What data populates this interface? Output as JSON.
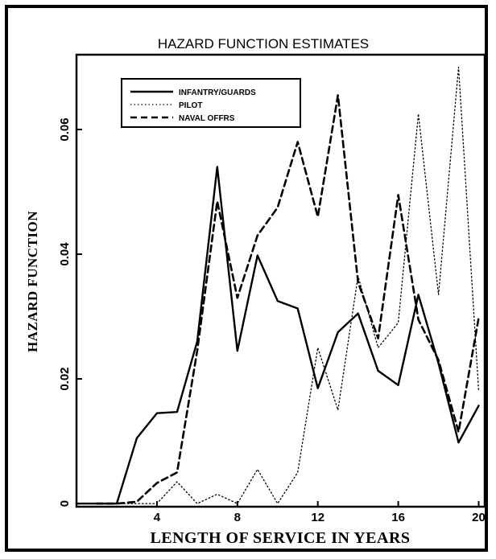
{
  "chart_data": {
    "type": "line",
    "title": "HAZARD FUNCTION ESTIMATES",
    "xlabel": "LENGTH OF SERVICE IN YEARS",
    "ylabel": "HAZARD FUNCTION",
    "xlim": [
      0,
      20.3
    ],
    "ylim": [
      -0.0005,
      0.072
    ],
    "x_ticks": [
      4,
      8,
      12,
      16,
      20
    ],
    "x_tick_labels": [
      "4",
      "8",
      "12",
      "16",
      "20"
    ],
    "y_ticks": [
      0,
      0.02,
      0.04,
      0.06
    ],
    "y_tick_labels": [
      "0",
      "0.02",
      "0.04",
      "0.06"
    ],
    "legend_position": "top-left",
    "grid": false,
    "series": [
      {
        "name": "INFANTRY/GUARDS",
        "style": "solid",
        "x": [
          0,
          1,
          2,
          3,
          4,
          5,
          6,
          7,
          8,
          9,
          10,
          11,
          12,
          13,
          14,
          15,
          16,
          17,
          18,
          19,
          20
        ],
        "values": [
          0,
          0,
          0,
          0.0105,
          0.0145,
          0.0147,
          0.026,
          0.054,
          0.0245,
          0.0398,
          0.0325,
          0.0313,
          0.0185,
          0.0275,
          0.0305,
          0.0213,
          0.019,
          0.0335,
          0.0225,
          0.0098,
          0.0157
        ]
      },
      {
        "name": "PILOT",
        "style": "dotted",
        "x": [
          2,
          3,
          4,
          5,
          6,
          7,
          8,
          9,
          10,
          11,
          12,
          13,
          14,
          15,
          16,
          17,
          18,
          19,
          20
        ],
        "values": [
          0,
          0,
          0,
          0.0035,
          0,
          0.0015,
          0,
          0.0055,
          0,
          0.005,
          0.025,
          0.015,
          0.0365,
          0.025,
          0.029,
          0.0625,
          0.0335,
          0.07,
          0.018
        ]
      },
      {
        "name": "NAVAL OFFRS",
        "style": "dashed",
        "x": [
          1,
          2,
          3,
          4,
          5,
          6,
          7,
          8,
          9,
          10,
          11,
          12,
          13,
          14,
          15,
          16,
          17,
          18,
          19,
          20
        ],
        "values": [
          0,
          0,
          0.0003,
          0.0033,
          0.005,
          0.0245,
          0.0485,
          0.033,
          0.043,
          0.0475,
          0.058,
          0.046,
          0.0655,
          0.0355,
          0.0265,
          0.0495,
          0.0295,
          0.023,
          0.0115,
          0.0298
        ]
      }
    ]
  }
}
